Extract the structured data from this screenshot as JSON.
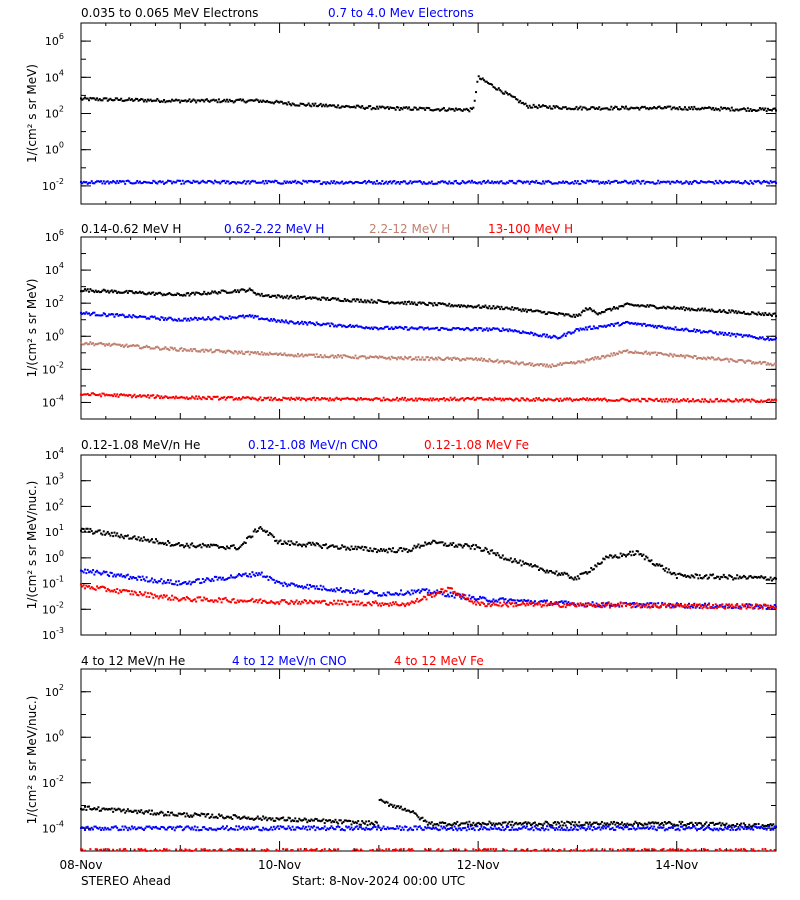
{
  "footer": {
    "left": "STEREO Ahead",
    "center": "Start:  8-Nov-2024 00:00 UTC"
  },
  "x_axis": {
    "ticks": [
      "08-Nov",
      "10-Nov",
      "12-Nov",
      "14-Nov"
    ],
    "tick_days": [
      0,
      2,
      4,
      6
    ],
    "range_days": [
      0,
      7
    ]
  },
  "chart_data": [
    {
      "type": "scatter",
      "ylabel": "1/(cm² s sr MeV)",
      "ylog": true,
      "ylim_exp": [
        -3,
        7
      ],
      "ytick_exps": [
        -2,
        0,
        2,
        4,
        6
      ],
      "series": [
        {
          "name": "0.035 to 0.065 MeV Electrons",
          "color": "#000000",
          "x": [
            0,
            1,
            1.8,
            2.2,
            3,
            3.95,
            4.0,
            4.5,
            5,
            6,
            7
          ],
          "log_y": [
            2.8,
            2.7,
            2.7,
            2.5,
            2.3,
            2.2,
            4.0,
            2.4,
            2.3,
            2.3,
            2.2
          ]
        },
        {
          "name": "0.7 to 4.0 Mev Electrons",
          "color": "#0000ff",
          "x": [
            0,
            2,
            4,
            6,
            7
          ],
          "log_y": [
            -1.8,
            -1.8,
            -1.8,
            -1.8,
            -1.8
          ]
        }
      ]
    },
    {
      "type": "scatter",
      "ylabel": "1/(cm² s sr MeV)",
      "ylog": true,
      "ylim_exp": [
        -5,
        6
      ],
      "ytick_exps": [
        -4,
        -2,
        0,
        2,
        4,
        6
      ],
      "series": [
        {
          "name": "0.14-0.62 MeV H",
          "color": "#000000",
          "x": [
            0,
            1,
            1.7,
            1.8,
            2,
            3,
            4.3,
            5,
            5.1,
            5.2,
            5.5,
            7
          ],
          "log_y": [
            2.8,
            2.5,
            2.8,
            2.5,
            2.4,
            2.1,
            1.7,
            1.2,
            1.7,
            1.4,
            1.9,
            1.3
          ]
        },
        {
          "name": "0.62-2.22 MeV H",
          "color": "#0000ff",
          "x": [
            0,
            1,
            1.7,
            2,
            3,
            4.3,
            4.8,
            5,
            5.5,
            7
          ],
          "log_y": [
            1.4,
            1.0,
            1.2,
            0.9,
            0.5,
            0.4,
            -0.1,
            0.4,
            0.8,
            -0.2
          ]
        },
        {
          "name": "2.2-12 MeV H",
          "color": "#c08070",
          "x": [
            0,
            1,
            2,
            3,
            4,
            4.7,
            5,
            5.5,
            7
          ],
          "log_y": [
            -0.4,
            -0.8,
            -1.1,
            -1.3,
            -1.4,
            -1.8,
            -1.6,
            -0.9,
            -1.7
          ]
        },
        {
          "name": "13-100 MeV H",
          "color": "#ff0000",
          "x": [
            0,
            1,
            2,
            4,
            7
          ],
          "log_y": [
            -3.5,
            -3.7,
            -3.8,
            -3.8,
            -3.9
          ]
        }
      ]
    },
    {
      "type": "scatter",
      "ylabel": "1/(cm² s sr MeV/nuc.)",
      "ylog": true,
      "ylim_exp": [
        -3,
        4
      ],
      "ytick_exps": [
        -3,
        -2,
        -1,
        0,
        1,
        2,
        3,
        4
      ],
      "series": [
        {
          "name": "0.12-1.08 MeV/n He",
          "color": "#000000",
          "x": [
            0,
            1,
            1.6,
            1.8,
            2,
            3,
            3.3,
            3.5,
            4,
            4.5,
            5,
            5.3,
            5.6,
            6,
            7
          ],
          "log_y": [
            1.1,
            0.5,
            0.4,
            1.2,
            0.6,
            0.3,
            0.3,
            0.6,
            0.4,
            -0.3,
            -0.8,
            0.0,
            0.2,
            -0.7,
            -0.8
          ]
        },
        {
          "name": "0.12-1.08 MeV/n CNO",
          "color": "#0000ff",
          "x": [
            0,
            1,
            1.8,
            2,
            2.5,
            3,
            3.5,
            4,
            5,
            7
          ],
          "log_y": [
            -0.5,
            -1.0,
            -0.6,
            -1.0,
            -1.2,
            -1.4,
            -1.3,
            -1.6,
            -1.8,
            -1.9
          ]
        },
        {
          "name": "0.12-1.08 MeV Fe",
          "color": "#ff0000",
          "x": [
            0,
            1,
            2,
            3.3,
            3.7,
            4,
            7
          ],
          "log_y": [
            -1.1,
            -1.6,
            -1.7,
            -1.8,
            -1.2,
            -1.8,
            -1.9
          ]
        }
      ]
    },
    {
      "type": "scatter",
      "ylabel": "1/(cm² s sr MeV/nuc.)",
      "ylog": true,
      "ylim_exp": [
        -5,
        3
      ],
      "ytick_exps": [
        -4,
        -2,
        0,
        2
      ],
      "series": [
        {
          "name": "4 to 12 MeV/n He",
          "color": "#000000",
          "x": [
            0,
            1,
            2,
            3,
            3.0,
            3.3,
            3.5,
            4,
            5,
            6,
            7
          ],
          "log_y": [
            -3.1,
            -3.4,
            -3.6,
            -3.8,
            -2.8,
            -3.2,
            -3.8,
            -3.8,
            -3.8,
            -3.8,
            -3.9
          ]
        },
        {
          "name": "4 to 12 MeV/n CNO",
          "color": "#0000ff",
          "x": [
            0,
            3.5,
            7
          ],
          "log_y": [
            -4.0,
            -4.0,
            -4.0
          ]
        },
        {
          "name": "4 to 12 MeV Fe",
          "color": "#ff0000",
          "x": [
            0,
            7
          ],
          "log_y": [
            -5.0,
            -5.0
          ]
        }
      ]
    }
  ]
}
